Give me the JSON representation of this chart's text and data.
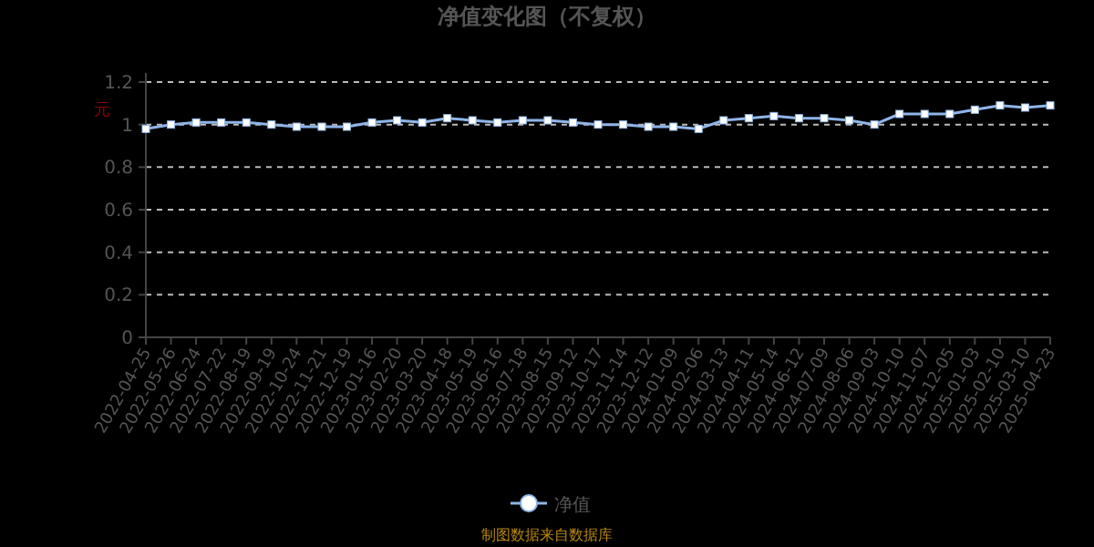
{
  "chart_data": {
    "type": "line",
    "title": "净值变化图（不复权）",
    "ylabel": "元",
    "categories": [
      "2022-04-25",
      "2022-05-26",
      "2022-06-24",
      "2022-07-22",
      "2022-08-19",
      "2022-09-19",
      "2022-10-24",
      "2022-11-21",
      "2022-12-19",
      "2023-01-16",
      "2023-02-20",
      "2023-03-20",
      "2023-04-18",
      "2023-05-19",
      "2023-06-16",
      "2023-07-18",
      "2023-08-15",
      "2023-09-12",
      "2023-10-17",
      "2023-11-14",
      "2023-12-12",
      "2024-01-09",
      "2024-02-06",
      "2024-03-13",
      "2024-04-11",
      "2024-05-14",
      "2024-06-12",
      "2024-07-09",
      "2024-08-06",
      "2024-09-03",
      "2024-10-10",
      "2024-11-07",
      "2024-12-05",
      "2025-01-03",
      "2025-02-10",
      "2025-03-10",
      "2025-04-23"
    ],
    "series": [
      {
        "name": "净值",
        "color": "#8fb5e8",
        "values": [
          0.98,
          1.0,
          1.01,
          1.01,
          1.01,
          1.0,
          0.99,
          0.99,
          0.99,
          1.01,
          1.02,
          1.01,
          1.03,
          1.02,
          1.01,
          1.02,
          1.02,
          1.01,
          1.0,
          1.0,
          0.99,
          0.99,
          0.98,
          1.02,
          1.03,
          1.04,
          1.03,
          1.03,
          1.02,
          1.0,
          1.05,
          1.05,
          1.05,
          1.07,
          1.09,
          1.08,
          1.09
        ]
      }
    ],
    "ylim": [
      0,
      1.2
    ],
    "yticks": [
      0,
      0.2,
      0.4,
      0.6,
      0.8,
      1,
      1.2
    ],
    "grid": "y",
    "legend": "bottom",
    "marker": "square",
    "line_style": "solid",
    "annotations": [
      "制图数据来自数据库"
    ]
  }
}
